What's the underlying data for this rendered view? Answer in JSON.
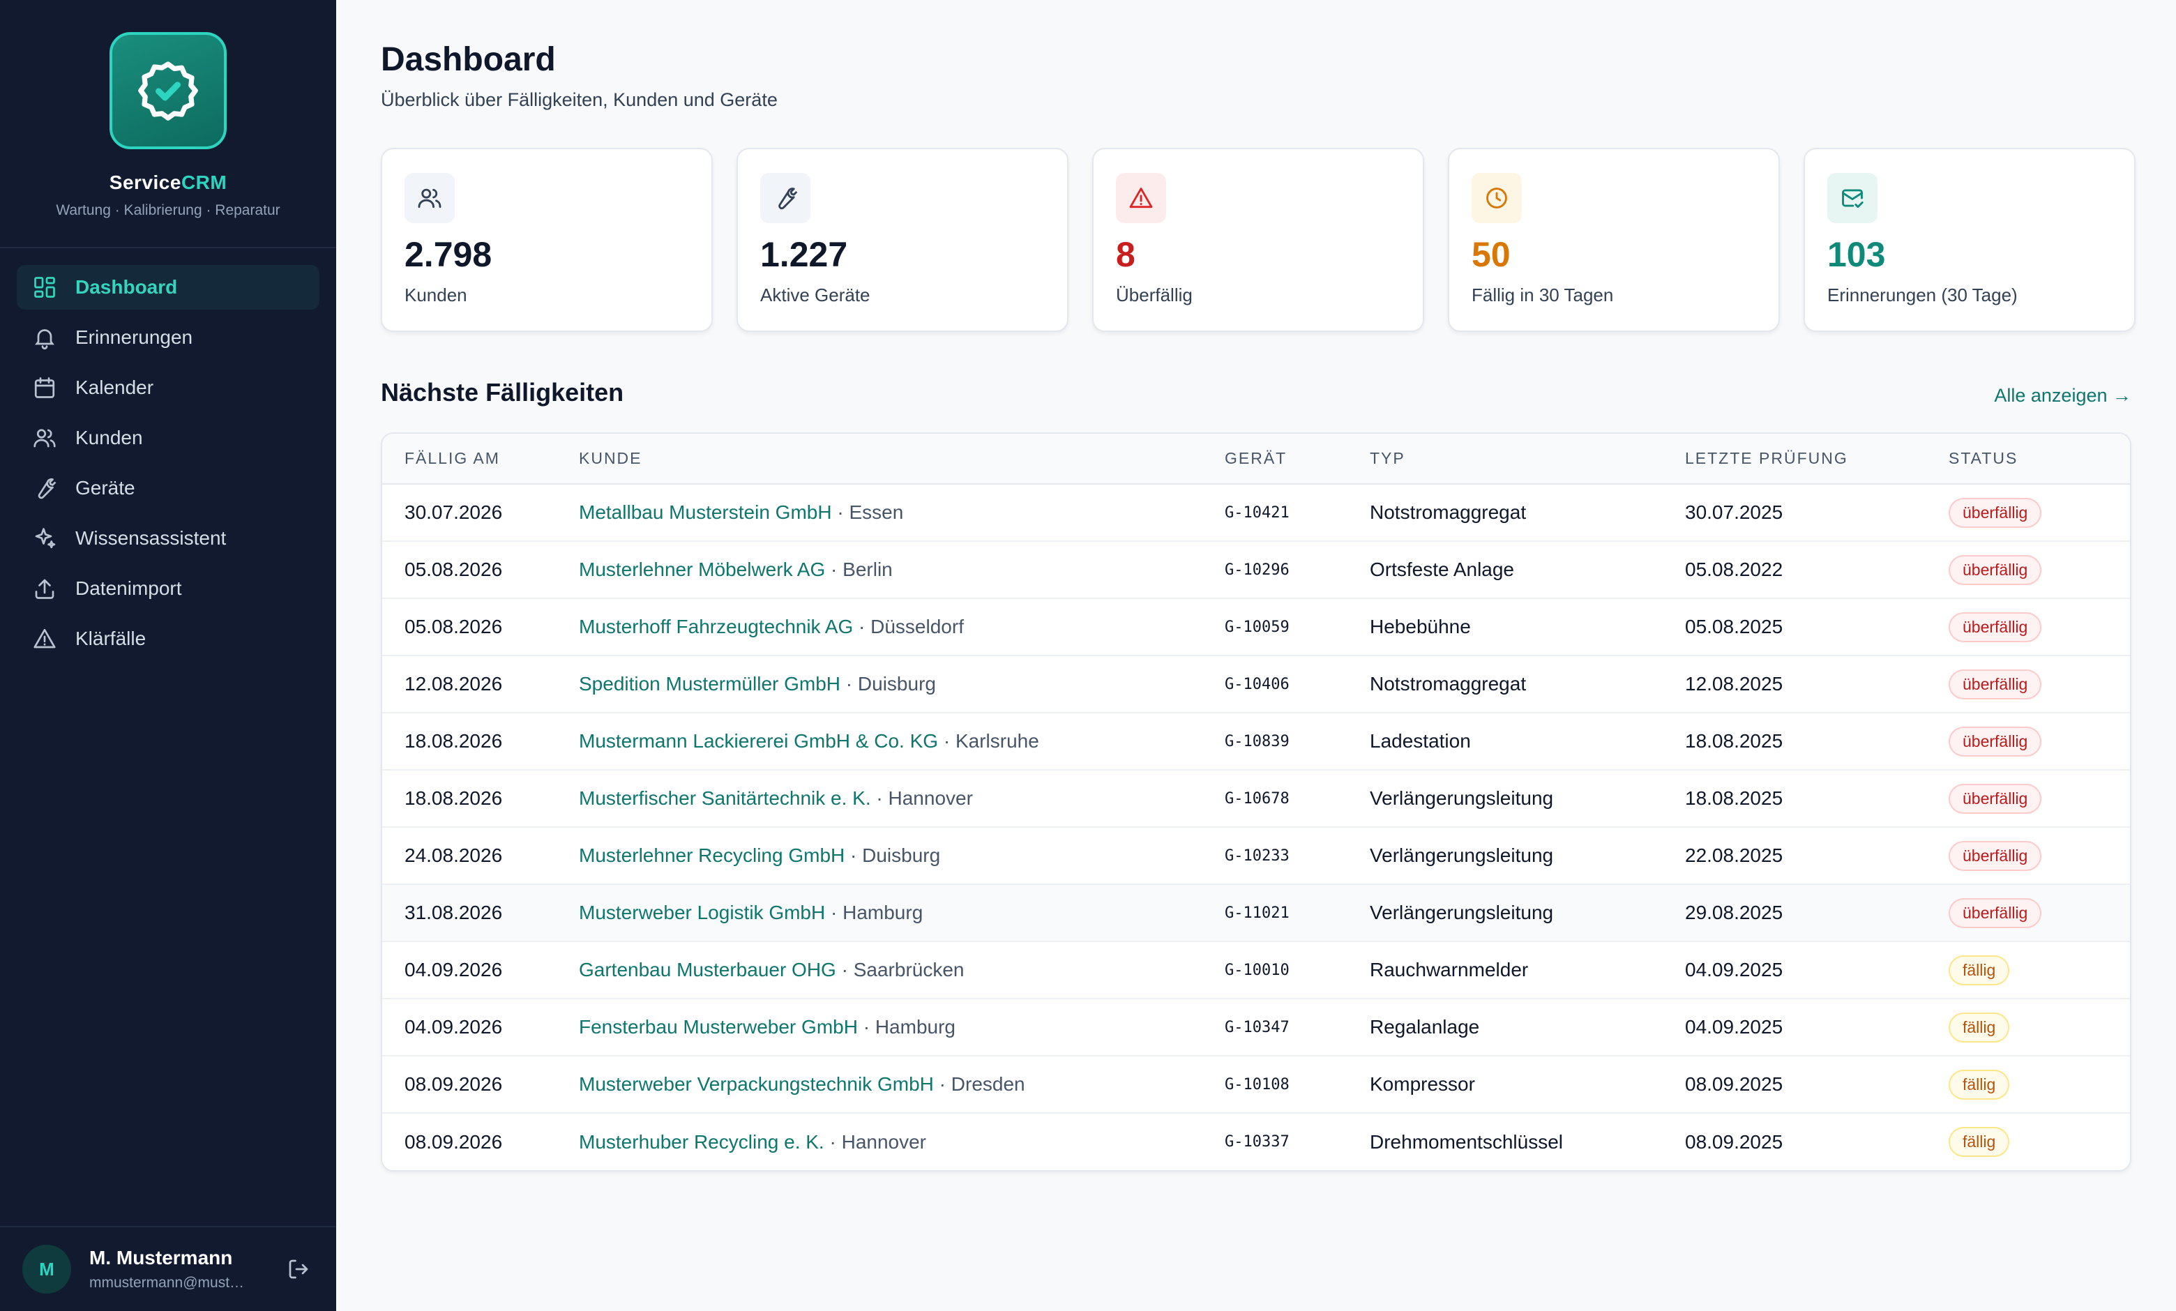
{
  "app": {
    "brand_prefix": "Service",
    "brand_suffix": "CRM",
    "tagline": "Wartung · Kalibrierung · Reparatur"
  },
  "sidebar": {
    "items": [
      {
        "label": "Dashboard",
        "icon": "dashboard-icon",
        "active": true
      },
      {
        "label": "Erinnerungen",
        "icon": "bell-icon"
      },
      {
        "label": "Kalender",
        "icon": "calendar-icon"
      },
      {
        "label": "Kunden",
        "icon": "users-icon"
      },
      {
        "label": "Geräte",
        "icon": "wrench-icon"
      },
      {
        "label": "Wissensassistent",
        "icon": "sparkle-icon"
      },
      {
        "label": "Datenimport",
        "icon": "upload-icon"
      },
      {
        "label": "Klärfälle",
        "icon": "warning-icon"
      }
    ]
  },
  "user": {
    "initial": "M",
    "name": "M. Mustermann",
    "email": "mmustermann@must…"
  },
  "header": {
    "title": "Dashboard",
    "subtitle": "Überblick über Fälligkeiten, Kunden und Geräte"
  },
  "stats": [
    {
      "value": "2.798",
      "label": "Kunden",
      "icon": "users-icon",
      "color": "#0f172a"
    },
    {
      "value": "1.227",
      "label": "Aktive Geräte",
      "icon": "wrench-icon",
      "color": "#0f172a"
    },
    {
      "value": "8",
      "label": "Überfällig",
      "icon": "warning-icon",
      "color": "#c81e1e"
    },
    {
      "value": "50",
      "label": "Fällig in 30 Tagen",
      "icon": "clock-icon",
      "color": "#d97706"
    },
    {
      "value": "103",
      "label": "Erinnerungen (30 Tage)",
      "icon": "mail-check-icon",
      "color": "#0f8a7a"
    }
  ],
  "section": {
    "title": "Nächste Fälligkeiten",
    "show_all": "Alle anzeigen →"
  },
  "table": {
    "headers": [
      "FÄLLIG AM",
      "KUNDE",
      "GERÄT",
      "TYP",
      "LETZTE PRÜFUNG",
      "STATUS"
    ],
    "rows": [
      {
        "due": "30.07.2026",
        "customer": "Metallbau Musterstein GmbH",
        "city": " · Essen",
        "device": "G-10421",
        "type": "Notstromaggregat",
        "last": "30.07.2025",
        "status": "überfällig"
      },
      {
        "due": "05.08.2026",
        "customer": "Musterlehner Möbelwerk AG",
        "city": " · Berlin",
        "device": "G-10296",
        "type": "Ortsfeste Anlage",
        "last": "05.08.2022",
        "status": "überfällig"
      },
      {
        "due": "05.08.2026",
        "customer": "Musterhoff Fahrzeugtechnik AG",
        "city": " · Düsseldorf",
        "device": "G-10059",
        "type": "Hebebühne",
        "last": "05.08.2025",
        "status": "überfällig"
      },
      {
        "due": "12.08.2026",
        "customer": "Spedition Mustermüller GmbH",
        "city": " · Duisburg",
        "device": "G-10406",
        "type": "Notstromaggregat",
        "last": "12.08.2025",
        "status": "überfällig"
      },
      {
        "due": "18.08.2026",
        "customer": "Mustermann Lackiererei GmbH & Co. KG",
        "city": " · Karlsruhe",
        "device": "G-10839",
        "type": "Ladestation",
        "last": "18.08.2025",
        "status": "überfällig"
      },
      {
        "due": "18.08.2026",
        "customer": "Musterfischer Sanitärtechnik e. K.",
        "city": " · Hannover",
        "device": "G-10678",
        "type": "Verlängerungsleitung",
        "last": "18.08.2025",
        "status": "überfällig"
      },
      {
        "due": "24.08.2026",
        "customer": "Musterlehner Recycling GmbH",
        "city": " · Duisburg",
        "device": "G-10233",
        "type": "Verlängerungsleitung",
        "last": "22.08.2025",
        "status": "überfällig"
      },
      {
        "due": "31.08.2026",
        "customer": "Musterweber Logistik GmbH",
        "city": " · Hamburg",
        "device": "G-11021",
        "type": "Verlängerungsleitung",
        "last": "29.08.2025",
        "status": "überfällig"
      },
      {
        "due": "04.09.2026",
        "customer": "Gartenbau Musterbauer OHG",
        "city": " · Saarbrücken",
        "device": "G-10010",
        "type": "Rauchwarnmelder",
        "last": "04.09.2025",
        "status": "fällig"
      },
      {
        "due": "04.09.2026",
        "customer": "Fensterbau Musterweber GmbH",
        "city": " · Hamburg",
        "device": "G-10347",
        "type": "Regalanlage",
        "last": "04.09.2025",
        "status": "fällig"
      },
      {
        "due": "08.09.2026",
        "customer": "Musterweber Verpackungstechnik GmbH",
        "city": " · Dresden",
        "device": "G-10108",
        "type": "Kompressor",
        "last": "08.09.2025",
        "status": "fällig"
      },
      {
        "due": "08.09.2026",
        "customer": "Musterhuber Recycling e. K.",
        "city": " · Hannover",
        "device": "G-10337",
        "type": "Drehmomentschlüssel",
        "last": "08.09.2025",
        "status": "fällig"
      }
    ]
  }
}
